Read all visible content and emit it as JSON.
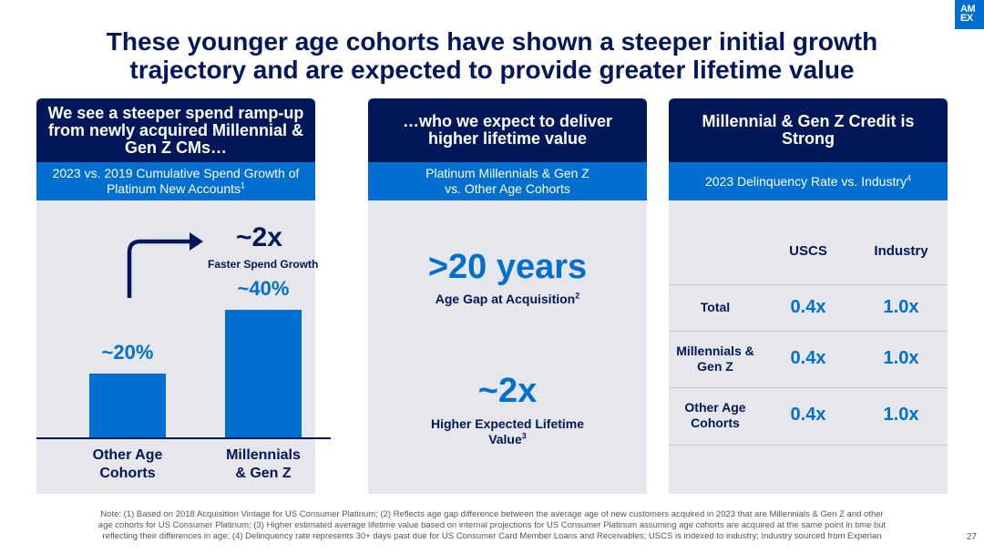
{
  "title_line1": "These younger age cohorts have shown a steeper initial growth",
  "title_line2": "trajectory and are expected to provide greater lifetime value",
  "logo_text": "AM EX",
  "panel1": {
    "heading": "We see a steeper spend ramp-up from newly acquired Millennial & Gen Z CMs…",
    "subheading": "2023 vs. 2019 Cumulative Spend Growth of Platinum New Accounts",
    "subheading_note": "1",
    "multiplier": "~2x",
    "multiplier_label": "Faster Spend Growth"
  },
  "chart_data": {
    "type": "bar",
    "categories": [
      "Other Age Cohorts",
      "Millennials & Gen Z"
    ],
    "category_lines": [
      [
        "Other Age",
        "Cohorts"
      ],
      [
        "Millennials",
        "& Gen Z"
      ]
    ],
    "values": [
      20,
      40
    ],
    "value_labels": [
      "~20%",
      "~40%"
    ],
    "ylim": [
      0,
      50
    ],
    "color": "#006fcf"
  },
  "panel2": {
    "heading": "…who we expect to deliver higher lifetime value",
    "subheading_line1": "Platinum Millennials & Gen Z",
    "subheading_line2": "vs. Other Age Cohorts",
    "stat1_value": ">20 years",
    "stat1_label": "Age Gap at Acquisition",
    "stat1_note": "2",
    "stat2_value": "~2x",
    "stat2_label_line1": "Higher Expected Lifetime",
    "stat2_label_line2": "Value",
    "stat2_note": "3"
  },
  "panel3": {
    "heading": "Millennial & Gen Z Credit is Strong",
    "subheading": "2023 Delinquency Rate vs. Industry",
    "subheading_note": "4",
    "columns": [
      "USCS",
      "Industry"
    ],
    "rows": [
      {
        "label": "Total",
        "uscs": "0.4x",
        "industry": "1.0x"
      },
      {
        "label": "Millennials & Gen Z",
        "uscs": "0.4x",
        "industry": "1.0x"
      },
      {
        "label": "Other Age Cohorts",
        "uscs": "0.4x",
        "industry": "1.0x"
      }
    ]
  },
  "note_line1": "Note: (1) Based on 2018 Acquisition Vintage for US Consumer Platinum; (2) Reflects age gap difference between the average age of new customers acquired in 2023 that are Millennials & Gen Z and other",
  "note_line2": "age cohorts for US Consumer Platinum; (3) Higher estimated average lifetime value based on internal projections for US Consumer Platinum assuming age cohorts are acquired at the same point in time but",
  "note_line3": "reflecting their differences in age; (4) Delinquency rate represents 30+ days past due for US Consumer Card Member Loans and Receivables; USCS is indexed to industry; Industry sourced from Experian",
  "page_number": "27",
  "colors": {
    "navy": "#00175a",
    "blue": "#006fcf",
    "panel_bg": "#e6e7ec"
  }
}
